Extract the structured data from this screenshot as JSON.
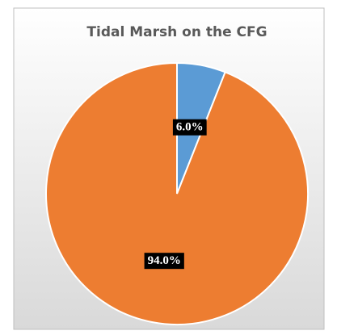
{
  "chart_data": {
    "type": "pie",
    "title": "Tidal Marsh on the CFG",
    "values": [
      6.0,
      94.0
    ],
    "value_labels": [
      "6.0%",
      "94.0%"
    ],
    "colors": [
      "#5b9bd5",
      "#ed7d31"
    ]
  }
}
